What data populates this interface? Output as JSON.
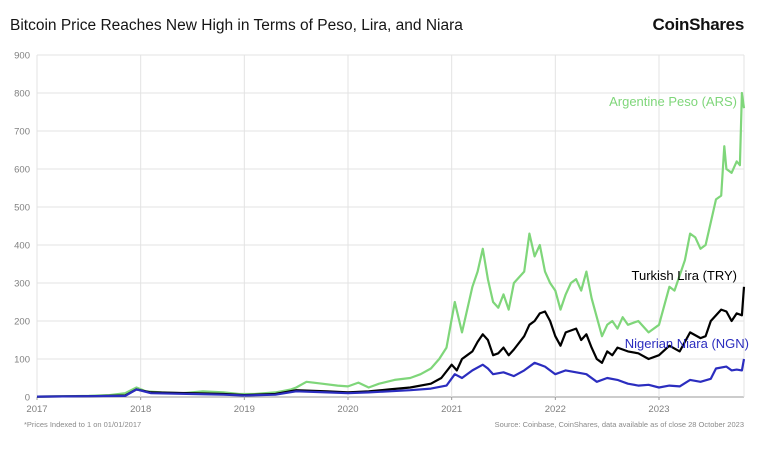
{
  "header": {
    "title": "Bitcoin Price Reaches New High in Terms of Peso, Lira, and Niara",
    "brand": "CoinShares"
  },
  "footer": {
    "note": "*Prices Indexed to 1 on 01/01/2017",
    "source": "Source: Coinbase, CoinShares, data available as of close 28 October 2023"
  },
  "chart_data": {
    "type": "line",
    "title": "Bitcoin Price Reaches New High in Terms of Peso, Lira, and Niara",
    "xlabel": "",
    "ylabel": "",
    "xlim": [
      2017.0,
      2023.82
    ],
    "ylim": [
      0,
      900
    ],
    "x_ticks": [
      "2017",
      "2018",
      "2019",
      "2020",
      "2021",
      "2022",
      "2023"
    ],
    "y_ticks": [
      0,
      100,
      200,
      300,
      400,
      500,
      600,
      700,
      800,
      900
    ],
    "grid": true,
    "legend": "inline labels",
    "series": [
      {
        "name": "Argentine Peso (ARS)",
        "color": "#7fd67a",
        "x": [
          2017.0,
          2017.3,
          2017.5,
          2017.7,
          2017.85,
          2017.96,
          2018.05,
          2018.2,
          2018.4,
          2018.6,
          2018.8,
          2018.95,
          2019.1,
          2019.3,
          2019.45,
          2019.5,
          2019.6,
          2019.75,
          2019.9,
          2020.0,
          2020.1,
          2020.2,
          2020.3,
          2020.45,
          2020.6,
          2020.7,
          2020.8,
          2020.88,
          2020.95,
          2021.03,
          2021.1,
          2021.15,
          2021.2,
          2021.25,
          2021.3,
          2021.35,
          2021.4,
          2021.45,
          2021.5,
          2021.55,
          2021.6,
          2021.7,
          2021.75,
          2021.8,
          2021.85,
          2021.9,
          2021.95,
          2022.0,
          2022.05,
          2022.1,
          2022.15,
          2022.2,
          2022.25,
          2022.3,
          2022.35,
          2022.45,
          2022.5,
          2022.55,
          2022.6,
          2022.65,
          2022.7,
          2022.8,
          2022.9,
          2023.0,
          2023.05,
          2023.1,
          2023.15,
          2023.2,
          2023.25,
          2023.3,
          2023.35,
          2023.4,
          2023.45,
          2023.5,
          2023.55,
          2023.6,
          2023.63,
          2023.65,
          2023.7,
          2023.75,
          2023.78,
          2023.8,
          2023.82
        ],
        "values": [
          1,
          2,
          3,
          5,
          10,
          25,
          15,
          12,
          10,
          15,
          12,
          8,
          8,
          12,
          20,
          25,
          40,
          35,
          30,
          28,
          38,
          25,
          35,
          45,
          50,
          60,
          75,
          100,
          130,
          250,
          170,
          230,
          290,
          330,
          390,
          310,
          250,
          235,
          270,
          230,
          300,
          330,
          430,
          370,
          400,
          330,
          300,
          280,
          230,
          270,
          300,
          310,
          280,
          330,
          260,
          160,
          190,
          200,
          180,
          210,
          190,
          200,
          170,
          190,
          240,
          290,
          280,
          320,
          360,
          430,
          420,
          390,
          400,
          460,
          520,
          530,
          660,
          600,
          590,
          620,
          610,
          800,
          760
        ]
      },
      {
        "name": "Turkish Lira (TRY)",
        "color": "#000000",
        "x": [
          2017.0,
          2017.5,
          2017.85,
          2017.96,
          2018.1,
          2018.5,
          2018.8,
          2019.0,
          2019.3,
          2019.5,
          2019.8,
          2020.0,
          2020.2,
          2020.4,
          2020.6,
          2020.8,
          2020.9,
          2021.0,
          2021.05,
          2021.1,
          2021.15,
          2021.2,
          2021.25,
          2021.3,
          2021.35,
          2021.4,
          2021.45,
          2021.5,
          2021.55,
          2021.6,
          2021.7,
          2021.75,
          2021.8,
          2021.85,
          2021.9,
          2021.95,
          2022.0,
          2022.05,
          2022.1,
          2022.15,
          2022.2,
          2022.25,
          2022.3,
          2022.35,
          2022.4,
          2022.45,
          2022.5,
          2022.55,
          2022.6,
          2022.7,
          2022.8,
          2022.9,
          2023.0,
          2023.1,
          2023.2,
          2023.3,
          2023.4,
          2023.45,
          2023.5,
          2023.6,
          2023.65,
          2023.7,
          2023.75,
          2023.8,
          2023.82
        ],
        "values": [
          1,
          2,
          4,
          20,
          12,
          10,
          8,
          5,
          8,
          18,
          15,
          12,
          15,
          20,
          25,
          35,
          50,
          85,
          70,
          100,
          110,
          120,
          145,
          165,
          150,
          110,
          115,
          130,
          110,
          125,
          160,
          190,
          200,
          220,
          225,
          200,
          160,
          135,
          170,
          175,
          180,
          150,
          165,
          130,
          100,
          90,
          120,
          110,
          130,
          120,
          115,
          100,
          110,
          135,
          120,
          170,
          155,
          160,
          200,
          230,
          225,
          200,
          220,
          215,
          290
        ]
      },
      {
        "name": "Nigerian Niara (NGN)",
        "color": "#2b2dbf",
        "x": [
          2017.0,
          2017.5,
          2017.85,
          2017.96,
          2018.1,
          2018.5,
          2018.8,
          2019.0,
          2019.3,
          2019.5,
          2019.8,
          2020.0,
          2020.2,
          2020.4,
          2020.6,
          2020.8,
          2020.95,
          2021.03,
          2021.1,
          2021.2,
          2021.3,
          2021.35,
          2021.4,
          2021.5,
          2021.6,
          2021.7,
          2021.8,
          2021.85,
          2021.9,
          2022.0,
          2022.1,
          2022.2,
          2022.3,
          2022.4,
          2022.5,
          2022.6,
          2022.7,
          2022.8,
          2022.9,
          2023.0,
          2023.1,
          2023.2,
          2023.3,
          2023.4,
          2023.5,
          2023.55,
          2023.65,
          2023.7,
          2023.75,
          2023.8,
          2023.82
        ],
        "values": [
          1,
          2,
          3,
          20,
          10,
          8,
          6,
          4,
          6,
          15,
          12,
          10,
          12,
          15,
          18,
          22,
          30,
          60,
          50,
          70,
          85,
          75,
          60,
          65,
          55,
          70,
          90,
          85,
          80,
          60,
          70,
          65,
          60,
          40,
          50,
          45,
          35,
          30,
          32,
          25,
          30,
          28,
          45,
          40,
          48,
          75,
          80,
          70,
          72,
          70,
          100
        ]
      }
    ]
  }
}
